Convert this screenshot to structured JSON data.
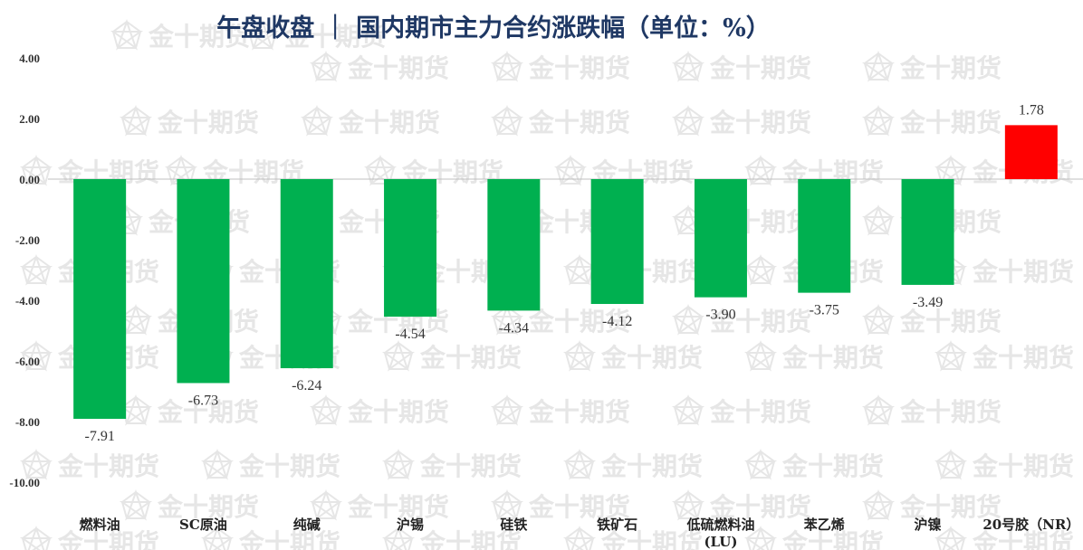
{
  "chart_data": {
    "type": "bar",
    "title": "午盘收盘 ｜ 国内期市主力合约涨跌幅（单位：%）",
    "categories": [
      "燃料油",
      "SC原油",
      "纯碱",
      "沪锡",
      "硅铁",
      "铁矿石",
      "低硫燃料油(LU)",
      "苯乙烯",
      "沪镍",
      "20号胶（NR）"
    ],
    "category_lines": [
      [
        "燃料油"
      ],
      [
        "SC原油"
      ],
      [
        "纯碱"
      ],
      [
        "沪锡"
      ],
      [
        "硅铁"
      ],
      [
        "铁矿石"
      ],
      [
        "低硫燃料油",
        "(LU)"
      ],
      [
        "苯乙烯"
      ],
      [
        "沪镍"
      ],
      [
        "20号胶（NR）"
      ]
    ],
    "values": [
      -7.91,
      -6.73,
      -6.24,
      -4.54,
      -4.34,
      -4.12,
      -3.9,
      -3.75,
      -3.49,
      1.78
    ],
    "value_labels": [
      "-7.91",
      "-6.73",
      "-6.24",
      "-4.54",
      "-4.34",
      "-4.12",
      "-3.90",
      "-3.75",
      "-3.49",
      "1.78"
    ],
    "ylim": [
      -10,
      4
    ],
    "yticks": [
      4,
      2,
      0,
      -2,
      -4,
      -6,
      -8,
      -10
    ],
    "ytick_labels": [
      "4.00",
      "2.00",
      "0.00",
      "-2.00",
      "-4.00",
      "-6.00",
      "-8.00",
      "-10.00"
    ],
    "xlabel": "",
    "ylabel": "",
    "grid": false,
    "colors": {
      "negative": "#00b050",
      "positive": "#ff0000",
      "title": "#1f3864",
      "text": "#333333"
    }
  },
  "watermark": {
    "text": "金十期货"
  }
}
